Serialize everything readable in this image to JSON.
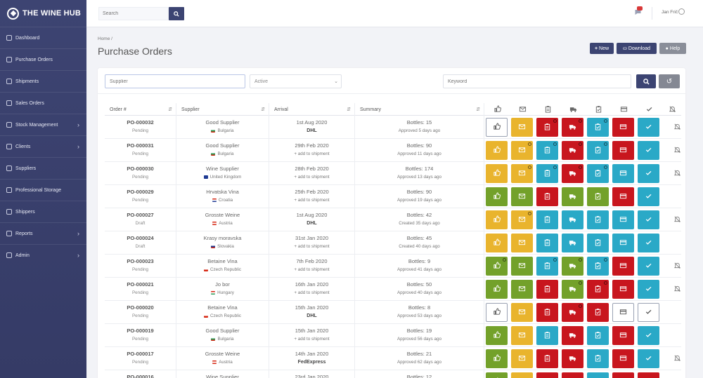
{
  "app": {
    "name": "THE WINE HUB"
  },
  "sidebar": {
    "items": [
      {
        "label": "Dashboard",
        "icon": "dashboard-icon",
        "has_children": false
      },
      {
        "label": "Purchase Orders",
        "icon": "cart-icon",
        "has_children": false
      },
      {
        "label": "Shipments",
        "icon": "truck-icon",
        "has_children": false
      },
      {
        "label": "Sales Orders",
        "icon": "receipt-icon",
        "has_children": false
      },
      {
        "label": "Stock Management",
        "icon": "boxes-icon",
        "has_children": true
      },
      {
        "label": "Clients",
        "icon": "users-icon",
        "has_children": true
      },
      {
        "label": "Suppliers",
        "icon": "industry-icon",
        "has_children": false
      },
      {
        "label": "Professional Storage",
        "icon": "warehouse-icon",
        "has_children": false
      },
      {
        "label": "Shippers",
        "icon": "ship-icon",
        "has_children": false
      },
      {
        "label": "Reports",
        "icon": "chart-icon",
        "has_children": true
      },
      {
        "label": "Admin",
        "icon": "gear-icon",
        "has_children": true
      }
    ]
  },
  "topbar": {
    "search_placeholder": "Search",
    "user_name": "Jan Frič"
  },
  "page": {
    "breadcrumb": "Home /",
    "title": "Purchase Orders"
  },
  "actions": {
    "new_label": "New",
    "download_label": "Download",
    "help_label": "Help"
  },
  "filters": {
    "supplier_placeholder": "Supplier",
    "status_value": "Active",
    "keyword_placeholder": "Keyword"
  },
  "table": {
    "headers": {
      "order": "Order #",
      "supplier": "Supplier",
      "arrival": "Arrival",
      "summary": "Summary"
    },
    "action_icons": [
      "thumb-up-icon",
      "envelope-icon",
      "clipboard-icon",
      "truck-icon",
      "clipboard-check-icon",
      "credit-card-icon",
      "check-icon",
      "bell-slash-icon"
    ],
    "rows": [
      {
        "order": "PO-000032",
        "status": "Pending",
        "supplier": "Good Supplier",
        "country": "Bulgaria",
        "flag": "bg",
        "arrival": "1st Aug 2020",
        "carrier": "DHL",
        "line1": "Bottles: 15",
        "line2": "Approved 5 days ago",
        "actions": [
          "w",
          "y",
          "r",
          "r",
          "b",
          "r",
          "b"
        ],
        "dots": [
          0,
          0,
          1,
          1,
          1,
          0,
          0
        ],
        "muted": true
      },
      {
        "order": "PO-000031",
        "status": "Pending",
        "supplier": "Good Supplier",
        "country": "Bulgaria",
        "flag": "bg",
        "arrival": "29th Feb 2020",
        "carrier": "+ add to shipment",
        "line1": "Bottles: 90",
        "line2": "Approved 11 days ago",
        "actions": [
          "y",
          "y",
          "b",
          "r",
          "b",
          "r",
          "b"
        ],
        "dots": [
          0,
          1,
          1,
          1,
          1,
          0,
          0
        ],
        "muted": true
      },
      {
        "order": "PO-000030",
        "status": "Pending",
        "supplier": "Wine Supplier",
        "country": "United Kingdom",
        "flag": "uk",
        "arrival": "28th Feb 2020",
        "carrier": "+ add to shipment",
        "line1": "Bottles: 174",
        "line2": "Approved 13 days ago",
        "actions": [
          "y",
          "y",
          "b",
          "r",
          "b",
          "b",
          "b"
        ],
        "dots": [
          0,
          1,
          1,
          1,
          1,
          0,
          0
        ],
        "muted": true
      },
      {
        "order": "PO-000029",
        "status": "Pending",
        "supplier": "Hrvatska Vina",
        "country": "Croatia",
        "flag": "hr",
        "arrival": "25th Feb 2020",
        "carrier": "+ add to shipment",
        "line1": "Bottles: 90",
        "line2": "Approved 19 days ago",
        "actions": [
          "g",
          "g",
          "r",
          "g",
          "g",
          "r",
          "b"
        ],
        "dots": [
          0,
          0,
          0,
          0,
          0,
          0,
          0
        ],
        "muted": false
      },
      {
        "order": "PO-000027",
        "status": "Draft",
        "supplier": "Grosste Weine",
        "country": "Austria",
        "flag": "at",
        "arrival": "1st Aug 2020",
        "carrier": "DHL",
        "line1": "Bottles: 42",
        "line2": "Created 35 days ago",
        "actions": [
          "y",
          "y",
          "b",
          "b",
          "b",
          "b",
          "b"
        ],
        "dots": [
          0,
          1,
          0,
          0,
          0,
          0,
          0
        ],
        "muted": true
      },
      {
        "order": "PO-000024",
        "status": "Draft",
        "supplier": "Krasy moravska",
        "country": "Slovakia",
        "flag": "sk",
        "arrival": "31st Jan 2020",
        "carrier": "+ add to shipment",
        "line1": "Bottles: 45",
        "line2": "Created 40 days ago",
        "actions": [
          "y",
          "y",
          "b",
          "b",
          "b",
          "b",
          "b"
        ],
        "dots": [
          0,
          0,
          0,
          0,
          0,
          0,
          0
        ],
        "muted": false
      },
      {
        "order": "PO-000023",
        "status": "Pending",
        "supplier": "Betaine Vina",
        "country": "Czech Republic",
        "flag": "cz",
        "arrival": "7th Feb 2020",
        "carrier": "+ add to shipment",
        "line1": "Bottles: 9",
        "line2": "Approved 41 days ago",
        "actions": [
          "g",
          "g",
          "b",
          "g",
          "b",
          "r",
          "b"
        ],
        "dots": [
          1,
          0,
          1,
          1,
          1,
          0,
          0
        ],
        "muted": true
      },
      {
        "order": "PO-000021",
        "status": "Pending",
        "supplier": "Jo bor",
        "country": "Hungary",
        "flag": "hu",
        "arrival": "16th Jan 2020",
        "carrier": "+ add to shipment",
        "line1": "Bottles: 50",
        "line2": "Approved 40 days ago",
        "actions": [
          "g",
          "g",
          "r",
          "g",
          "r",
          "r",
          "b"
        ],
        "dots": [
          0,
          0,
          0,
          1,
          1,
          0,
          0
        ],
        "muted": true
      },
      {
        "order": "PO-000020",
        "status": "Pending",
        "supplier": "Betaine Vina",
        "country": "Czech Republic",
        "flag": "cz",
        "arrival": "15th Jan 2020",
        "carrier": "DHL",
        "line1": "Bottles: 8",
        "line2": "Approved 53 days ago",
        "actions": [
          "w",
          "y",
          "r",
          "r",
          "r",
          "w",
          "w"
        ],
        "dots": [
          0,
          0,
          0,
          1,
          0,
          0,
          0
        ],
        "muted": false
      },
      {
        "order": "PO-000019",
        "status": "Pending",
        "supplier": "Good Supplier",
        "country": "Bulgaria",
        "flag": "bg",
        "arrival": "15th Jan 2020",
        "carrier": "+ add to shipment",
        "line1": "Bottles: 19",
        "line2": "Approved 56 days ago",
        "actions": [
          "g",
          "y",
          "b",
          "r",
          "b",
          "r",
          "b"
        ],
        "dots": [
          0,
          0,
          0,
          0,
          0,
          0,
          0
        ],
        "muted": false
      },
      {
        "order": "PO-000017",
        "status": "Pending",
        "supplier": "Grosste Weine",
        "country": "Austria",
        "flag": "at",
        "arrival": "14th Jan 2020",
        "carrier": "FedExpress",
        "line1": "Bottles: 21",
        "line2": "Approved 62 days ago",
        "actions": [
          "g",
          "y",
          "r",
          "r",
          "b",
          "r",
          "b"
        ],
        "dots": [
          0,
          0,
          0,
          0,
          0,
          0,
          0
        ],
        "muted": true
      },
      {
        "order": "PO-000016",
        "status": "Pending",
        "supplier": "Wine Supplier",
        "country": "United Kingdom",
        "flag": "uk",
        "arrival": "23rd Jan 2020",
        "carrier": "",
        "line1": "Bottles: 12",
        "line2": "",
        "actions": [
          "g",
          "y",
          "r",
          "r",
          "b",
          "r",
          "r"
        ],
        "dots": [
          0,
          0,
          0,
          0,
          0,
          0,
          0
        ],
        "muted": false
      }
    ]
  }
}
